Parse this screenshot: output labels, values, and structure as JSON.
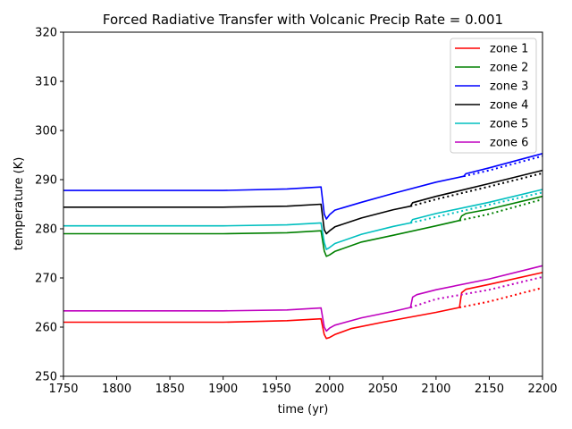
{
  "chart_data": {
    "type": "line",
    "title": "Forced Radiative Transfer with Volcanic Precip Rate = 0.001",
    "xlabel": "time (yr)",
    "ylabel": "temperature (K)",
    "xlim": [
      1750,
      2200
    ],
    "ylim": [
      250,
      320
    ],
    "xticks": [
      1750,
      1800,
      1850,
      1900,
      1950,
      2000,
      2050,
      2100,
      2150,
      2200
    ],
    "yticks": [
      250,
      260,
      270,
      280,
      290,
      300,
      310,
      320
    ],
    "xtick_labels": [
      "1750",
      "1800",
      "1850",
      "1900",
      "1950",
      "2000",
      "2050",
      "2100",
      "2150",
      "2200"
    ],
    "ytick_labels": [
      "250",
      "260",
      "270",
      "280",
      "290",
      "300",
      "310",
      "320"
    ],
    "grid": false,
    "legend_position": "top-right",
    "series": [
      {
        "name": "zone 1",
        "color": "#ff0000",
        "solid": [
          [
            1750,
            261.0
          ],
          [
            1900,
            261.0
          ],
          [
            1960,
            261.3
          ],
          [
            1992,
            261.7
          ],
          [
            1995,
            258.5
          ],
          [
            1997,
            257.7
          ],
          [
            2000,
            257.9
          ],
          [
            2005,
            258.5
          ],
          [
            2020,
            259.7
          ],
          [
            2050,
            261.0
          ],
          [
            2100,
            263.0
          ],
          [
            2122,
            264.0
          ],
          [
            2124,
            267.0
          ],
          [
            2128,
            267.7
          ],
          [
            2150,
            268.7
          ],
          [
            2200,
            271.1
          ]
        ],
        "dotted": [
          [
            2122,
            264.0
          ],
          [
            2150,
            265.2
          ],
          [
            2200,
            268.0
          ]
        ]
      },
      {
        "name": "zone 2",
        "color": "#008000",
        "solid": [
          [
            1750,
            279.0
          ],
          [
            1900,
            279.0
          ],
          [
            1960,
            279.2
          ],
          [
            1992,
            279.6
          ],
          [
            1995,
            275.5
          ],
          [
            1997,
            274.4
          ],
          [
            2000,
            274.7
          ],
          [
            2005,
            275.4
          ],
          [
            2030,
            277.3
          ],
          [
            2060,
            278.7
          ],
          [
            2100,
            280.6
          ],
          [
            2122,
            281.7
          ],
          [
            2124,
            282.6
          ],
          [
            2128,
            283.1
          ],
          [
            2150,
            284.0
          ],
          [
            2200,
            286.6
          ]
        ],
        "dotted": [
          [
            2122,
            281.7
          ],
          [
            2150,
            283.0
          ],
          [
            2200,
            286.0
          ]
        ]
      },
      {
        "name": "zone 3",
        "color": "#0000ff",
        "solid": [
          [
            1750,
            287.8
          ],
          [
            1900,
            287.8
          ],
          [
            1960,
            288.1
          ],
          [
            1992,
            288.5
          ],
          [
            1995,
            283.0
          ],
          [
            1997,
            282.0
          ],
          [
            2000,
            282.9
          ],
          [
            2005,
            283.8
          ],
          [
            2030,
            285.4
          ],
          [
            2060,
            287.2
          ],
          [
            2100,
            289.5
          ],
          [
            2126,
            290.7
          ],
          [
            2128,
            291.2
          ],
          [
            2150,
            292.4
          ],
          [
            2200,
            295.3
          ]
        ],
        "dotted": [
          [
            2126,
            290.7
          ],
          [
            2150,
            291.9
          ],
          [
            2200,
            294.8
          ]
        ]
      },
      {
        "name": "zone 4",
        "color": "#000000",
        "solid": [
          [
            1750,
            284.4
          ],
          [
            1900,
            284.4
          ],
          [
            1960,
            284.6
          ],
          [
            1992,
            285.0
          ],
          [
            1995,
            279.8
          ],
          [
            1997,
            279.0
          ],
          [
            2000,
            279.6
          ],
          [
            2005,
            280.4
          ],
          [
            2030,
            282.2
          ],
          [
            2060,
            283.9
          ],
          [
            2076,
            284.6
          ],
          [
            2078,
            285.3
          ],
          [
            2100,
            286.6
          ],
          [
            2150,
            289.2
          ],
          [
            2200,
            291.9
          ]
        ],
        "dotted": [
          [
            2076,
            284.6
          ],
          [
            2100,
            286.0
          ],
          [
            2150,
            288.6
          ],
          [
            2200,
            291.3
          ]
        ]
      },
      {
        "name": "zone 5",
        "color": "#00bfbf",
        "solid": [
          [
            1750,
            280.6
          ],
          [
            1900,
            280.6
          ],
          [
            1960,
            280.8
          ],
          [
            1992,
            281.2
          ],
          [
            1995,
            277.2
          ],
          [
            1997,
            275.8
          ],
          [
            2000,
            276.2
          ],
          [
            2005,
            277.0
          ],
          [
            2030,
            278.9
          ],
          [
            2060,
            280.5
          ],
          [
            2076,
            281.2
          ],
          [
            2078,
            281.9
          ],
          [
            2100,
            283.1
          ],
          [
            2150,
            285.4
          ],
          [
            2200,
            288.0
          ]
        ],
        "dotted": [
          [
            2076,
            281.2
          ],
          [
            2100,
            282.4
          ],
          [
            2150,
            284.9
          ],
          [
            2200,
            287.4
          ]
        ]
      },
      {
        "name": "zone 6",
        "color": "#bf00bf",
        "solid": [
          [
            1750,
            263.3
          ],
          [
            1900,
            263.3
          ],
          [
            1960,
            263.5
          ],
          [
            1992,
            263.9
          ],
          [
            1995,
            260.0
          ],
          [
            1997,
            259.2
          ],
          [
            2000,
            259.8
          ],
          [
            2005,
            260.4
          ],
          [
            2030,
            261.9
          ],
          [
            2060,
            263.2
          ],
          [
            2076,
            264.0
          ],
          [
            2078,
            266.1
          ],
          [
            2082,
            266.6
          ],
          [
            2100,
            267.6
          ],
          [
            2150,
            269.8
          ],
          [
            2200,
            272.5
          ]
        ],
        "dotted": [
          [
            2076,
            264.0
          ],
          [
            2100,
            265.7
          ],
          [
            2150,
            267.6
          ],
          [
            2200,
            270.2
          ]
        ]
      }
    ]
  }
}
